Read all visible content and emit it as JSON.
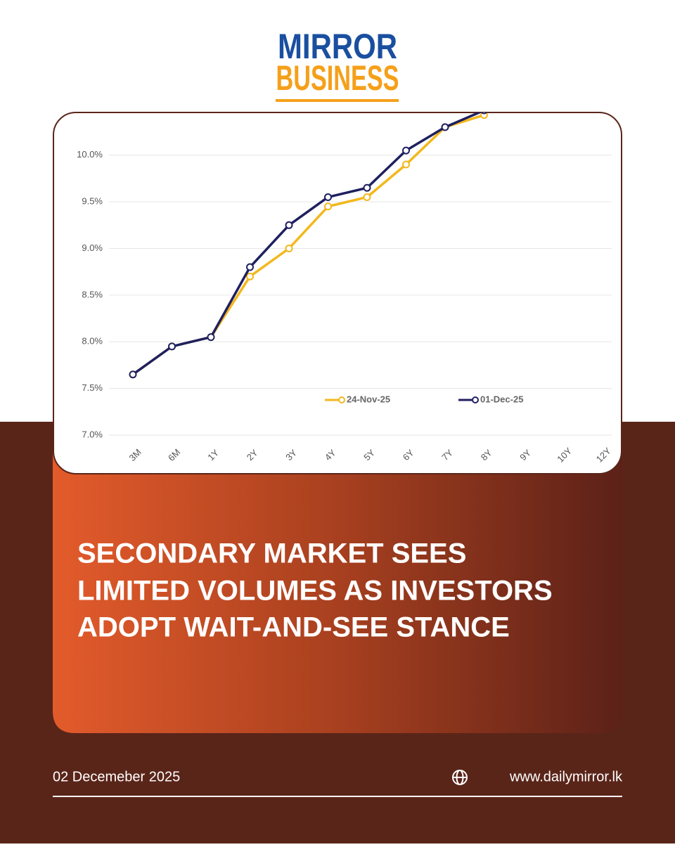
{
  "logo": {
    "top": "MIRROR",
    "bottom": "BUSINESS"
  },
  "chart_data": {
    "type": "line",
    "categories": [
      "3M",
      "6M",
      "1Y",
      "2Y",
      "3Y",
      "4Y",
      "5Y",
      "6Y",
      "7Y",
      "8Y",
      "9Y",
      "10Y",
      "12Y"
    ],
    "series": [
      {
        "name": "24-Nov-25",
        "color": "#f2b81c",
        "values": [
          7.65,
          7.95,
          8.05,
          8.7,
          9.0,
          9.45,
          9.55,
          9.9,
          10.3,
          10.43,
          null,
          null,
          null
        ]
      },
      {
        "name": "01-Dec-25",
        "color": "#1f2060",
        "values": [
          7.65,
          7.95,
          8.05,
          8.8,
          9.25,
          9.55,
          9.65,
          10.05,
          10.3,
          10.48,
          null,
          null,
          null
        ]
      }
    ],
    "ylim": [
      7.0,
      10.45
    ],
    "yticks": [
      {
        "value": 7.0,
        "label": "7.0%"
      },
      {
        "value": 7.5,
        "label": "7.5%"
      },
      {
        "value": 8.0,
        "label": "8.0%"
      },
      {
        "value": 8.5,
        "label": "8.5%"
      },
      {
        "value": 9.0,
        "label": "9.0%"
      },
      {
        "value": 9.5,
        "label": "9.5%"
      },
      {
        "value": 10.0,
        "label": "10.0%"
      }
    ],
    "grid": true,
    "legend": "bottom"
  },
  "headline": [
    "SECONDARY MARKET SEES",
    "LIMITED VOLUMES AS INVESTORS",
    "ADOPT WAIT-AND-SEE STANCE"
  ],
  "date": "02 Decemeber 2025",
  "website": "www.dailymirror.lk"
}
